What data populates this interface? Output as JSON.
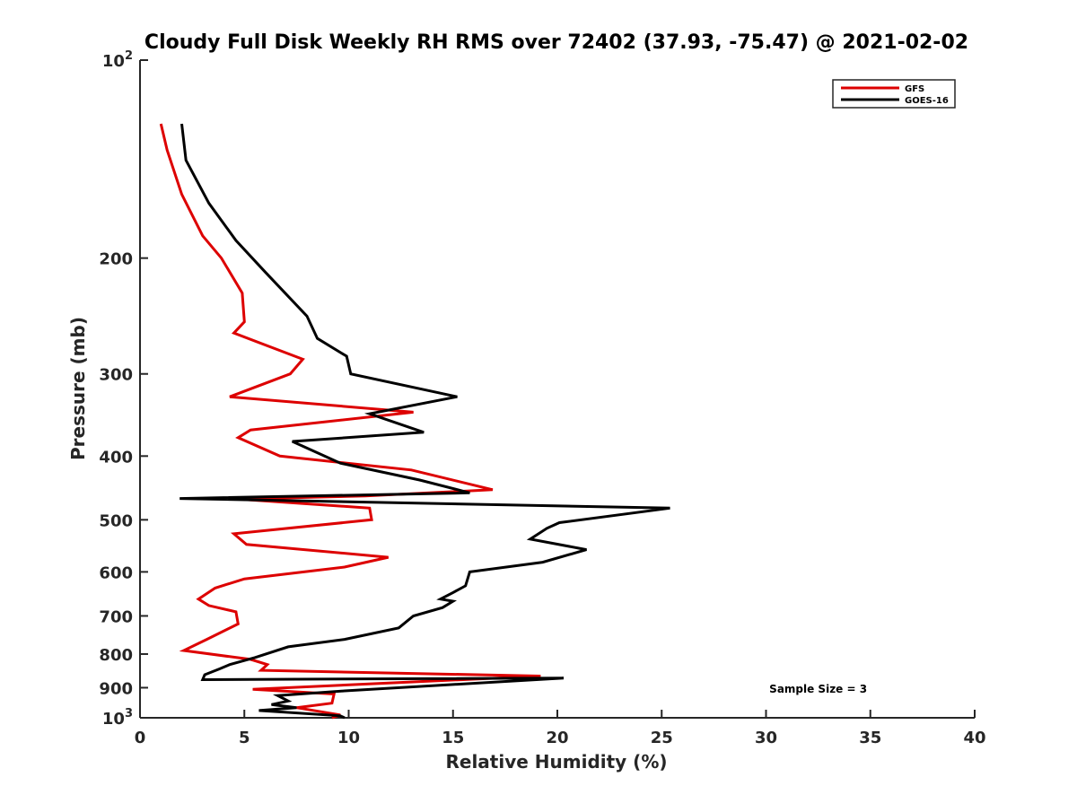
{
  "chart_data": {
    "type": "line",
    "title": "Cloudy Full Disk Weekly RH RMS over 72402 (37.93, -75.47) @ 2021-02-02",
    "xlabel": "Relative Humidity (%)",
    "ylabel": "Pressure (mb)",
    "xlim": [
      0,
      40
    ],
    "ylim": [
      100,
      1000
    ],
    "y_scale": "log",
    "y_reversed": true,
    "grid": false,
    "legend_position": "top-right",
    "x_ticks": [
      {
        "value": 0,
        "label": "0"
      },
      {
        "value": 5,
        "label": "5"
      },
      {
        "value": 10,
        "label": "10"
      },
      {
        "value": 15,
        "label": "15"
      },
      {
        "value": 20,
        "label": "20"
      },
      {
        "value": 25,
        "label": "25"
      },
      {
        "value": 30,
        "label": "30"
      },
      {
        "value": 35,
        "label": "35"
      },
      {
        "value": 40,
        "label": "40"
      }
    ],
    "y_ticks": [
      {
        "value": 100,
        "base": "10",
        "exp": "2"
      },
      {
        "value": 200,
        "base": "200",
        "exp": ""
      },
      {
        "value": 300,
        "base": "300",
        "exp": ""
      },
      {
        "value": 400,
        "base": "400",
        "exp": ""
      },
      {
        "value": 500,
        "base": "500",
        "exp": ""
      },
      {
        "value": 600,
        "base": "600",
        "exp": ""
      },
      {
        "value": 700,
        "base": "700",
        "exp": ""
      },
      {
        "value": 800,
        "base": "800",
        "exp": ""
      },
      {
        "value": 900,
        "base": "900",
        "exp": ""
      },
      {
        "value": 1000,
        "base": "10",
        "exp": "3"
      }
    ],
    "series": [
      {
        "name": "GFS",
        "color": "#dd0000",
        "points": [
          [
            1.0,
            125
          ],
          [
            1.3,
            137
          ],
          [
            2.0,
            160
          ],
          [
            3.0,
            185
          ],
          [
            3.9,
            200
          ],
          [
            4.9,
            226
          ],
          [
            5.0,
            250
          ],
          [
            4.5,
            260
          ],
          [
            7.8,
            285
          ],
          [
            7.2,
            300
          ],
          [
            4.3,
            325
          ],
          [
            13.1,
            343
          ],
          [
            5.3,
            365
          ],
          [
            4.7,
            375
          ],
          [
            6.7,
            400
          ],
          [
            13.0,
            420
          ],
          [
            16.9,
            450
          ],
          [
            10.8,
            460
          ],
          [
            4.7,
            465
          ],
          [
            11.0,
            480
          ],
          [
            11.1,
            500
          ],
          [
            4.5,
            525
          ],
          [
            5.1,
            545
          ],
          [
            11.9,
            570
          ],
          [
            9.8,
            590
          ],
          [
            5.0,
            615
          ],
          [
            3.6,
            635
          ],
          [
            2.8,
            660
          ],
          [
            3.3,
            675
          ],
          [
            4.6,
            690
          ],
          [
            4.7,
            720
          ],
          [
            3.2,
            760
          ],
          [
            2.1,
            790
          ],
          [
            5.3,
            815
          ],
          [
            6.1,
            830
          ],
          [
            5.8,
            847
          ],
          [
            19.2,
            864
          ],
          [
            5.4,
            905
          ],
          [
            9.3,
            920
          ],
          [
            9.2,
            950
          ],
          [
            7.5,
            965
          ],
          [
            9.6,
            990
          ],
          [
            9.2,
            1000
          ]
        ]
      },
      {
        "name": "GOES-16",
        "color": "#000000",
        "points": [
          [
            2.0,
            125
          ],
          [
            2.2,
            142
          ],
          [
            3.3,
            165
          ],
          [
            4.6,
            188
          ],
          [
            6.0,
            210
          ],
          [
            8.0,
            245
          ],
          [
            8.5,
            265
          ],
          [
            9.9,
            282
          ],
          [
            10.1,
            300
          ],
          [
            15.2,
            325
          ],
          [
            11.0,
            345
          ],
          [
            13.6,
            368
          ],
          [
            7.3,
            380
          ],
          [
            9.6,
            410
          ],
          [
            13.4,
            435
          ],
          [
            15.8,
            455
          ],
          [
            1.9,
            464
          ],
          [
            25.4,
            480
          ],
          [
            20.1,
            505
          ],
          [
            19.5,
            515
          ],
          [
            18.7,
            535
          ],
          [
            21.4,
            555
          ],
          [
            19.3,
            580
          ],
          [
            15.8,
            600
          ],
          [
            15.6,
            630
          ],
          [
            15.0,
            645
          ],
          [
            14.4,
            660
          ],
          [
            15.0,
            665
          ],
          [
            14.5,
            680
          ],
          [
            13.1,
            700
          ],
          [
            12.4,
            730
          ],
          [
            9.8,
            760
          ],
          [
            7.1,
            780
          ],
          [
            5.5,
            810
          ],
          [
            4.3,
            830
          ],
          [
            3.8,
            843
          ],
          [
            3.1,
            860
          ],
          [
            3.0,
            875
          ],
          [
            20.3,
            870
          ],
          [
            9.8,
            910
          ],
          [
            6.6,
            925
          ],
          [
            7.1,
            943
          ],
          [
            6.3,
            955
          ],
          [
            7.5,
            965
          ],
          [
            5.7,
            975
          ],
          [
            9.6,
            993
          ],
          [
            9.8,
            1000
          ]
        ]
      }
    ],
    "annotations": [
      {
        "text": "Sample Size = 3",
        "x": 32.5,
        "y": 905
      }
    ]
  }
}
